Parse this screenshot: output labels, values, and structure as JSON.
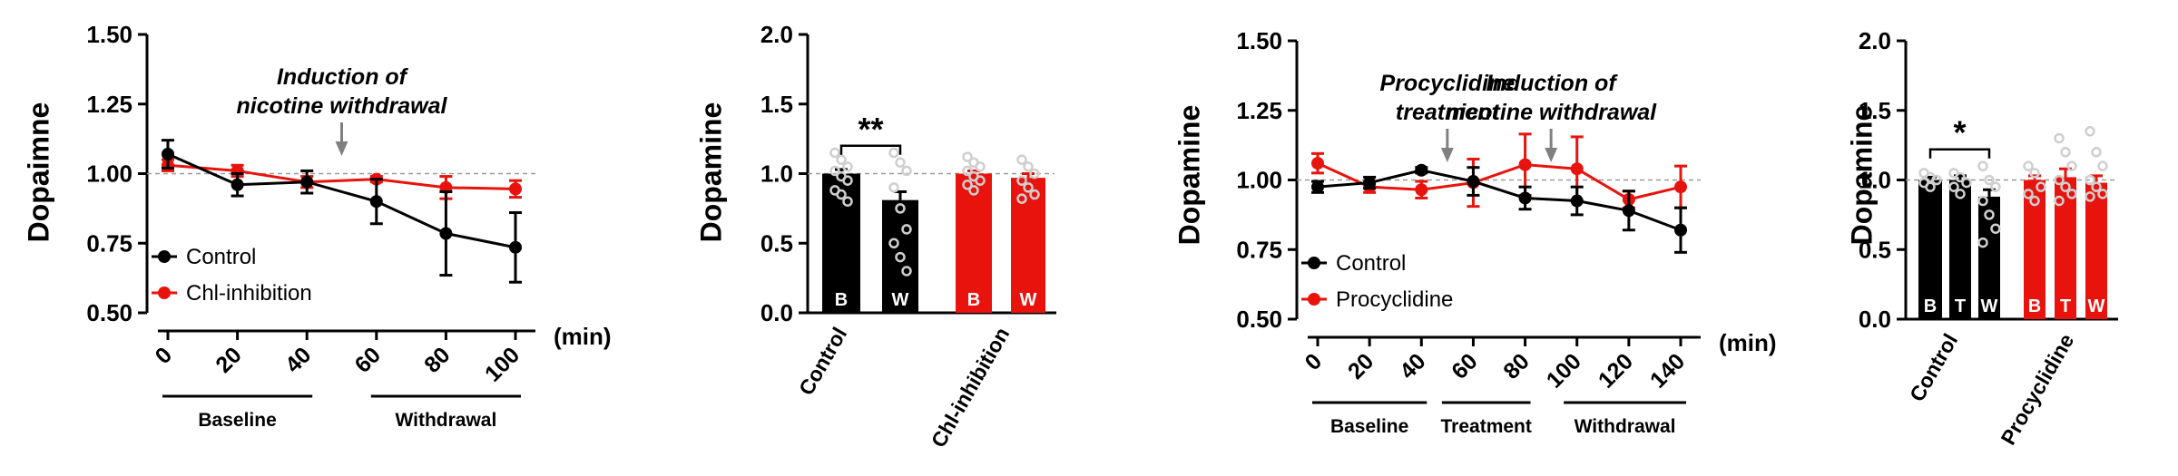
{
  "colors": {
    "control": "#000000",
    "treatment": "#e8130d",
    "reference": "#9a9a9a",
    "dots": "#cfcfcf",
    "arrow": "#808080"
  },
  "chart_data": [
    {
      "type": "line",
      "ylabel": "Dopaimne",
      "xunit": "(min)",
      "ylim": [
        0.5,
        1.5
      ],
      "yticks": [
        "0.50",
        "0.75",
        "1.00",
        "1.25",
        "1.50"
      ],
      "x": [
        0,
        20,
        40,
        60,
        80,
        100
      ],
      "xticks": [
        "0",
        "20",
        "40",
        "60",
        "80",
        "100"
      ],
      "xlim": [
        0,
        100
      ],
      "reference_y": 1.0,
      "series": [
        {
          "name": "Control",
          "color": "#000000",
          "x": [
            0,
            20,
            40,
            60,
            80,
            100
          ],
          "values": [
            1.07,
            0.96,
            0.97,
            0.9,
            0.785,
            0.735
          ],
          "errors": [
            0.05,
            0.04,
            0.04,
            0.08,
            0.15,
            0.125
          ]
        },
        {
          "name": "Chl-inhibition",
          "color": "#e8130d",
          "x": [
            0,
            20,
            40,
            60,
            80,
            100
          ],
          "values": [
            1.03,
            1.01,
            0.97,
            0.98,
            0.95,
            0.945
          ],
          "errors": [
            0.02,
            0.02,
            0.02,
            0.01,
            0.04,
            0.03
          ]
        }
      ],
      "annotations": [
        {
          "text": [
            "Induction of",
            "nicotine withdrawal"
          ],
          "x": 50
        }
      ],
      "periods": [
        {
          "label": "Baseline",
          "x0": 0,
          "x1": 40
        },
        {
          "label": "Withdrawal",
          "x0": 60,
          "x1": 100
        }
      ],
      "legend": "bottom-left"
    },
    {
      "type": "bar",
      "ylabel": "Dopamine",
      "ylim": [
        0,
        2.0
      ],
      "yticks": [
        "0.0",
        "0.5",
        "1.0",
        "1.5",
        "2.0"
      ],
      "reference_y": 1.0,
      "categories": [
        "Control",
        "Chl-inhibition"
      ],
      "groups": [
        {
          "name": "Control",
          "color": "#000000",
          "bars": [
            {
              "label": "B",
              "value": 1.0,
              "error": 0.03,
              "points": [
                1.15,
                1.1,
                1.05,
                1.02,
                0.98,
                0.95,
                0.88,
                0.85,
                0.8
              ]
            },
            {
              "label": "W",
              "value": 0.81,
              "error": 0.06,
              "points": [
                1.15,
                1.08,
                1.02,
                0.9,
                0.75,
                0.6,
                0.5,
                0.4,
                0.3
              ]
            }
          ]
        },
        {
          "name": "Chl-inhibition",
          "color": "#e8130d",
          "bars": [
            {
              "label": "B",
              "value": 1.0,
              "error": 0.02,
              "points": [
                1.12,
                1.08,
                1.05,
                1.02,
                0.98,
                0.95,
                0.92,
                0.88
              ]
            },
            {
              "label": "W",
              "value": 0.97,
              "error": 0.03,
              "points": [
                1.1,
                1.05,
                1.0,
                0.95,
                0.9,
                0.85,
                0.82
              ]
            }
          ]
        }
      ],
      "significance": {
        "text": "**",
        "group": 0,
        "from": 0,
        "to": 1,
        "y": 1.2
      }
    },
    {
      "type": "line",
      "ylabel": "Dopamine",
      "xunit": "(min)",
      "ylim": [
        0.5,
        1.5
      ],
      "yticks": [
        "0.50",
        "0.75",
        "1.00",
        "1.25",
        "1.50"
      ],
      "xticks": [
        "0",
        "20",
        "40",
        "60",
        "80",
        "100",
        "120",
        "140"
      ],
      "xlim": [
        0,
        140
      ],
      "reference_y": 1.0,
      "series": [
        {
          "name": "Control",
          "color": "#000000",
          "x": [
            0,
            20,
            40,
            60,
            80,
            100,
            120,
            140
          ],
          "values": [
            0.975,
            0.99,
            1.035,
            0.995,
            0.935,
            0.925,
            0.89,
            0.82
          ],
          "errors": [
            0.02,
            0.02,
            0.01,
            0.05,
            0.04,
            0.05,
            0.07,
            0.08
          ]
        },
        {
          "name": "Procyclidine",
          "color": "#e8130d",
          "x": [
            0,
            20,
            40,
            60,
            80,
            100,
            120,
            140
          ],
          "values": [
            1.06,
            0.975,
            0.965,
            0.99,
            1.055,
            1.04,
            0.93,
            0.975
          ],
          "errors": [
            0.035,
            0.02,
            0.03,
            0.085,
            0.11,
            0.115,
            0.03,
            0.075
          ]
        }
      ],
      "annotations": [
        {
          "text": [
            "Procyclidine",
            "treatment"
          ],
          "x": 50
        },
        {
          "text": [
            "Induction of",
            "nicotine withdrawal"
          ],
          "x": 90
        }
      ],
      "periods": [
        {
          "label": "Baseline",
          "x0": 0,
          "x1": 40
        },
        {
          "label": "Treatment",
          "x0": 50,
          "x1": 80
        },
        {
          "label": "Withdrawal",
          "x0": 97,
          "x1": 140
        }
      ],
      "legend": "bottom-left"
    },
    {
      "type": "bar",
      "ylabel": "Dopamine",
      "ylim": [
        0,
        2.0
      ],
      "yticks": [
        "0.0",
        "0.5",
        "1.0",
        "1.5",
        "2.0"
      ],
      "reference_y": 1.0,
      "categories": [
        "Control",
        "Procyclidine"
      ],
      "groups": [
        {
          "name": "Control",
          "color": "#000000",
          "bars": [
            {
              "label": "B",
              "value": 1.0,
              "error": 0.02,
              "points": [
                1.05,
                1.02,
                1.0,
                0.98,
                0.95
              ]
            },
            {
              "label": "T",
              "value": 1.0,
              "error": 0.03,
              "points": [
                1.05,
                1.02,
                0.98,
                0.95,
                0.9
              ]
            },
            {
              "label": "W",
              "value": 0.88,
              "error": 0.05,
              "points": [
                1.1,
                1.0,
                0.95,
                0.85,
                0.75,
                0.65,
                0.55
              ]
            }
          ]
        },
        {
          "name": "Procyclidine",
          "color": "#e8130d",
          "bars": [
            {
              "label": "B",
              "value": 1.0,
              "error": 0.03,
              "points": [
                1.1,
                1.05,
                0.95,
                0.9,
                0.85
              ]
            },
            {
              "label": "T",
              "value": 1.02,
              "error": 0.06,
              "points": [
                1.3,
                1.2,
                1.1,
                1.0,
                0.95,
                0.9,
                0.85
              ]
            },
            {
              "label": "W",
              "value": 0.98,
              "error": 0.05,
              "points": [
                1.35,
                1.2,
                1.1,
                1.0,
                0.95,
                0.9,
                0.88
              ]
            }
          ]
        }
      ],
      "significance": {
        "text": "*",
        "group": 0,
        "from": 0,
        "to": 2,
        "y": 1.22
      }
    }
  ]
}
